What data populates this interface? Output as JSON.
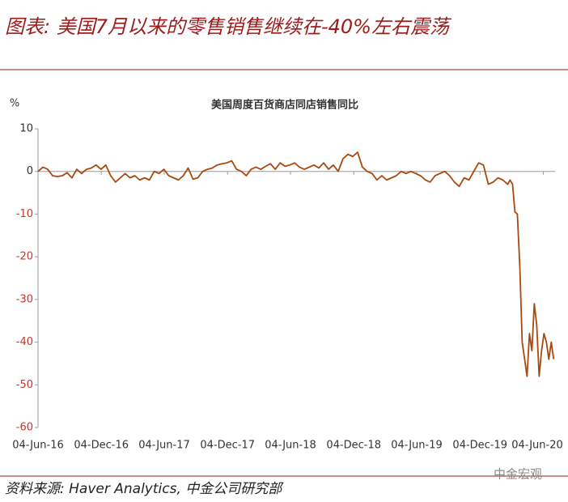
{
  "header": "图表: 美国7月以来的零售销售继续在-40%左右震荡",
  "source": "资料来源: Haver Analytics, 中金公司研究部",
  "watermark": "中金宏观",
  "chart_data": {
    "type": "line",
    "title": "美国周度百货商店同店销售同比",
    "y_label": "%",
    "x": [
      "2016-06-04",
      "2016-06-18",
      "2016-07-02",
      "2016-07-16",
      "2016-07-30",
      "2016-08-13",
      "2016-08-27",
      "2016-09-10",
      "2016-09-24",
      "2016-10-08",
      "2016-10-22",
      "2016-11-05",
      "2016-11-19",
      "2016-12-03",
      "2016-12-17",
      "2016-12-31",
      "2017-01-14",
      "2017-01-28",
      "2017-02-11",
      "2017-02-25",
      "2017-03-11",
      "2017-03-25",
      "2017-04-08",
      "2017-04-22",
      "2017-05-06",
      "2017-05-20",
      "2017-06-03",
      "2017-06-17",
      "2017-07-01",
      "2017-07-15",
      "2017-07-29",
      "2017-08-12",
      "2017-08-26",
      "2017-09-09",
      "2017-09-23",
      "2017-10-07",
      "2017-10-21",
      "2017-11-04",
      "2017-11-18",
      "2017-12-02",
      "2017-12-16",
      "2017-12-30",
      "2018-01-13",
      "2018-01-27",
      "2018-02-10",
      "2018-02-24",
      "2018-03-10",
      "2018-03-24",
      "2018-04-07",
      "2018-04-21",
      "2018-05-05",
      "2018-05-19",
      "2018-06-02",
      "2018-06-16",
      "2018-06-30",
      "2018-07-14",
      "2018-07-28",
      "2018-08-11",
      "2018-08-25",
      "2018-09-08",
      "2018-09-22",
      "2018-10-06",
      "2018-10-20",
      "2018-11-03",
      "2018-11-17",
      "2018-12-01",
      "2018-12-15",
      "2018-12-29",
      "2019-01-12",
      "2019-01-26",
      "2019-02-09",
      "2019-02-23",
      "2019-03-09",
      "2019-03-23",
      "2019-04-06",
      "2019-04-20",
      "2019-05-04",
      "2019-05-18",
      "2019-06-01",
      "2019-06-15",
      "2019-06-29",
      "2019-07-13",
      "2019-07-27",
      "2019-08-10",
      "2019-08-24",
      "2019-09-07",
      "2019-09-21",
      "2019-10-05",
      "2019-10-19",
      "2019-11-02",
      "2019-11-16",
      "2019-11-30",
      "2019-12-14",
      "2019-12-28",
      "2020-01-11",
      "2020-01-25",
      "2020-02-08",
      "2020-02-22",
      "2020-02-29",
      "2020-03-07",
      "2020-03-14",
      "2020-03-21",
      "2020-03-28",
      "2020-04-04",
      "2020-04-11",
      "2020-04-18",
      "2020-04-25",
      "2020-05-02",
      "2020-05-09",
      "2020-05-16",
      "2020-05-23",
      "2020-05-30",
      "2020-06-06",
      "2020-06-13",
      "2020-06-20",
      "2020-06-27",
      "2020-07-04"
    ],
    "series": [
      {
        "name": "美国周度百货商店同店销售同比",
        "color": "#a9480f",
        "values": [
          0,
          1,
          0.5,
          -1,
          -1.2,
          -1,
          -0.3,
          -1.5,
          0.5,
          -0.5,
          0.5,
          0.8,
          1.5,
          0.5,
          1.5,
          -1,
          -2.5,
          -1.5,
          -0.5,
          -1.5,
          -1,
          -2,
          -1.5,
          -2,
          0,
          -0.5,
          0.5,
          -1,
          -1.5,
          -2,
          -1,
          0.8,
          -1.8,
          -1.5,
          0,
          0.5,
          0.8,
          1.5,
          1.8,
          2,
          2.5,
          0.5,
          0,
          -1,
          0.5,
          1,
          0.5,
          1.2,
          1.8,
          0.5,
          2,
          1.2,
          1.5,
          2,
          1,
          0.5,
          1,
          1.5,
          0.8,
          2,
          0.5,
          1.5,
          0,
          3,
          4,
          3.5,
          4.5,
          1,
          0,
          -0.5,
          -2,
          -1,
          -2,
          -1.5,
          -1,
          0,
          -0.5,
          0,
          -0.5,
          -1,
          -2,
          -2.5,
          -1,
          -0.5,
          0,
          -1,
          -2.5,
          -3.5,
          -1.5,
          -2,
          0,
          2,
          1.5,
          -3,
          -2.5,
          -1.5,
          -2,
          -3,
          -2,
          -3,
          -9.5,
          -10,
          -22,
          -40,
          -44,
          -48,
          -38,
          -42,
          -31,
          -36,
          -48,
          -42,
          -38,
          -40,
          -44,
          -40,
          -44
        ]
      }
    ],
    "xlim": [
      "2016-06-04",
      "2020-07-08"
    ],
    "xticks": [
      {
        "value": "2016-06-04",
        "label": "04-Jun-16"
      },
      {
        "value": "2016-12-04",
        "label": "04-Dec-16"
      },
      {
        "value": "2017-06-04",
        "label": "04-Jun-17"
      },
      {
        "value": "2017-12-04",
        "label": "04-Dec-17"
      },
      {
        "value": "2018-06-04",
        "label": "04-Jun-18"
      },
      {
        "value": "2018-12-04",
        "label": "04-Dec-18"
      },
      {
        "value": "2019-06-04",
        "label": "04-Jun-19"
      },
      {
        "value": "2019-12-04",
        "label": "04-Dec-19"
      },
      {
        "value": "2020-06-04",
        "label": "04-Jun-20"
      }
    ],
    "ylim": [
      -60,
      10
    ],
    "yticks": [
      10,
      0,
      -10,
      -20,
      -30,
      -40,
      -50,
      -60
    ],
    "grid": false
  }
}
